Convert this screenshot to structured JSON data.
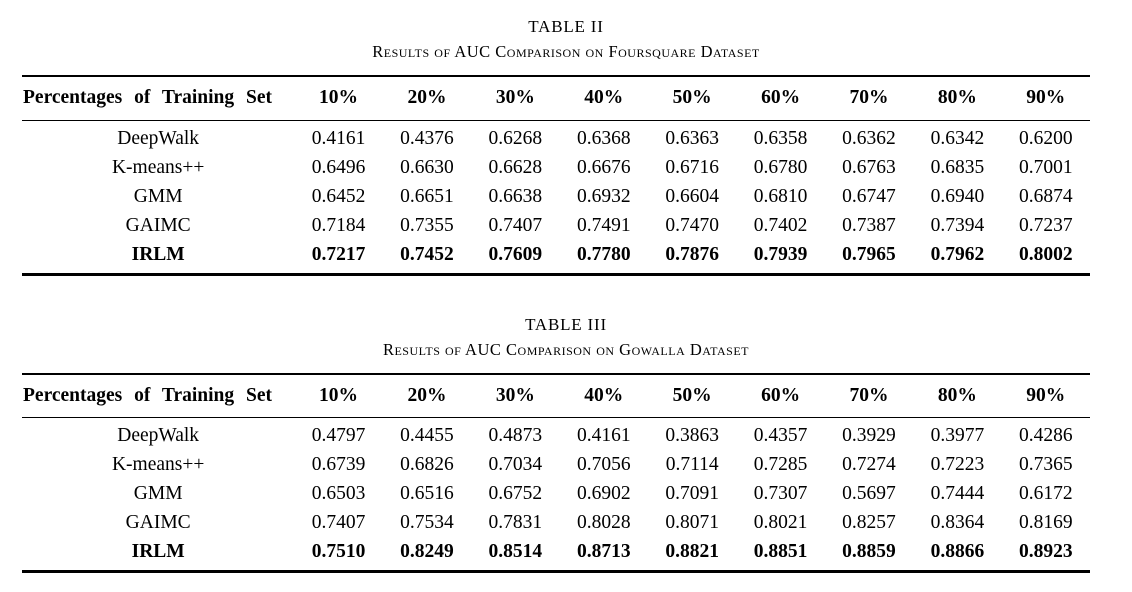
{
  "page": {
    "background_color": "#ffffff",
    "text_color": "#000000"
  },
  "tables": [
    {
      "label": "TABLE II",
      "caption": "Results of AUC Comparison on Foursquare Dataset",
      "header": [
        "Percentages of Training Set",
        "10%",
        "20%",
        "30%",
        "40%",
        "50%",
        "60%",
        "70%",
        "80%",
        "90%"
      ],
      "rows": [
        {
          "method": "DeepWalk",
          "bold": false,
          "values": [
            "0.4161",
            "0.4376",
            "0.6268",
            "0.6368",
            "0.6363",
            "0.6358",
            "0.6362",
            "0.6342",
            "0.6200"
          ]
        },
        {
          "method": "K-means++",
          "bold": false,
          "values": [
            "0.6496",
            "0.6630",
            "0.6628",
            "0.6676",
            "0.6716",
            "0.6780",
            "0.6763",
            "0.6835",
            "0.7001"
          ]
        },
        {
          "method": "GMM",
          "bold": false,
          "values": [
            "0.6452",
            "0.6651",
            "0.6638",
            "0.6932",
            "0.6604",
            "0.6810",
            "0.6747",
            "0.6940",
            "0.6874"
          ]
        },
        {
          "method": "GAIMC",
          "bold": false,
          "values": [
            "0.7184",
            "0.7355",
            "0.7407",
            "0.7491",
            "0.7470",
            "0.7402",
            "0.7387",
            "0.7394",
            "0.7237"
          ]
        },
        {
          "method": "IRLM",
          "bold": true,
          "values": [
            "0.7217",
            "0.7452",
            "0.7609",
            "0.7780",
            "0.7876",
            "0.7939",
            "0.7965",
            "0.7962",
            "0.8002"
          ]
        }
      ]
    },
    {
      "label": "TABLE III",
      "caption": "Results of AUC Comparison on Gowalla Dataset",
      "header": [
        "Percentages of Training Set",
        "10%",
        "20%",
        "30%",
        "40%",
        "50%",
        "60%",
        "70%",
        "80%",
        "90%"
      ],
      "rows": [
        {
          "method": "DeepWalk",
          "bold": false,
          "values": [
            "0.4797",
            "0.4455",
            "0.4873",
            "0.4161",
            "0.3863",
            "0.4357",
            "0.3929",
            "0.3977",
            "0.4286"
          ]
        },
        {
          "method": "K-means++",
          "bold": false,
          "values": [
            "0.6739",
            "0.6826",
            "0.7034",
            "0.7056",
            "0.7114",
            "0.7285",
            "0.7274",
            "0.7223",
            "0.7365"
          ]
        },
        {
          "method": "GMM",
          "bold": false,
          "values": [
            "0.6503",
            "0.6516",
            "0.6752",
            "0.6902",
            "0.7091",
            "0.7307",
            "0.5697",
            "0.7444",
            "0.6172"
          ]
        },
        {
          "method": "GAIMC",
          "bold": false,
          "values": [
            "0.7407",
            "0.7534",
            "0.7831",
            "0.8028",
            "0.8071",
            "0.8021",
            "0.8257",
            "0.8364",
            "0.8169"
          ]
        },
        {
          "method": "IRLM",
          "bold": true,
          "values": [
            "0.7510",
            "0.8249",
            "0.8514",
            "0.8713",
            "0.8821",
            "0.8851",
            "0.8859",
            "0.8866",
            "0.8923"
          ]
        }
      ]
    }
  ]
}
